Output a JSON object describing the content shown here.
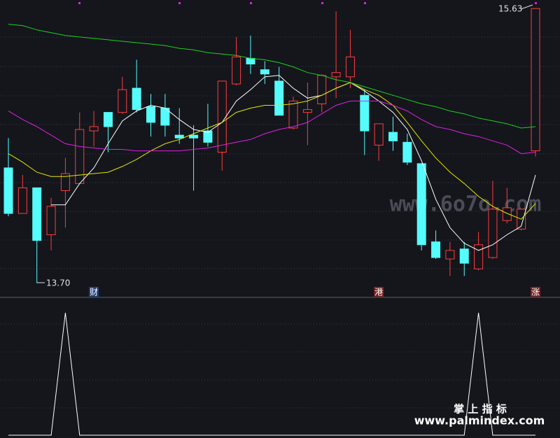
{
  "chart_data": {
    "type": "candlestick",
    "open": [
      14.51,
      14.19,
      14.37,
      14.04,
      14.35,
      14.4,
      14.77,
      14.9,
      14.9,
      15.07,
      14.94,
      14.93,
      14.74,
      14.74,
      14.77,
      14.62,
      15.1,
      15.28,
      15.2,
      15.12,
      14.79,
      14.9,
      14.96,
      15.15,
      15.15,
      15.02,
      14.67,
      14.76,
      14.69,
      14.54,
      13.99,
      13.87,
      13.94,
      13.8,
      13.88,
      14.14,
      14.08,
      14.63
    ],
    "high": [
      14.72,
      14.46,
      14.37,
      14.3,
      14.58,
      14.9,
      14.91,
      14.9,
      15.15,
      15.27,
      15.03,
      15.03,
      14.93,
      14.81,
      14.96,
      15.12,
      15.43,
      15.44,
      15.26,
      15.22,
      15.01,
      15.11,
      15.17,
      15.61,
      15.48,
      15.06,
      14.82,
      14.87,
      14.75,
      14.54,
      14.07,
      13.99,
      13.99,
      14.06,
      14.42,
      14.37,
      14.22,
      15.63
    ],
    "low": [
      14.17,
      14.19,
      13.7,
      13.93,
      14.09,
      14.4,
      14.66,
      14.62,
      14.89,
      14.9,
      14.73,
      14.73,
      14.68,
      14.35,
      14.66,
      14.49,
      15.09,
      15.17,
      15.1,
      14.88,
      14.78,
      14.67,
      14.9,
      15.0,
      15.07,
      14.6,
      14.56,
      14.63,
      14.53,
      13.93,
      13.87,
      13.75,
      13.75,
      13.79,
      13.87,
      14.12,
      14.07,
      14.59
    ],
    "close": [
      14.19,
      14.37,
      14.0,
      14.24,
      14.47,
      14.78,
      14.8,
      14.8,
      15.06,
      14.92,
      14.83,
      14.81,
      14.72,
      14.72,
      14.69,
      15.12,
      15.29,
      15.24,
      15.17,
      14.88,
      14.98,
      14.92,
      15.16,
      15.18,
      15.29,
      14.77,
      14.82,
      14.7,
      14.55,
      13.97,
      13.88,
      13.93,
      13.84,
      13.97,
      14.22,
      14.23,
      14.22,
      15.63
    ],
    "up_color": "#ff3c3c",
    "down_color": "#54fcfc",
    "ylim": [
      13.6,
      15.69
    ],
    "series": [
      {
        "color": "#ffffff",
        "values": [
          null,
          null,
          null,
          14.25,
          14.25,
          14.4,
          14.51,
          14.68,
          14.84,
          14.91,
          14.95,
          14.93,
          14.85,
          14.78,
          14.76,
          14.83,
          14.98,
          15.06,
          15.15,
          15.16,
          15.07,
          15.0,
          15.02,
          15.07,
          15.11,
          15.05,
          14.98,
          14.9,
          14.78,
          14.56,
          14.29,
          14.09,
          13.98,
          13.93,
          13.97,
          14.04,
          14.1,
          14.46
        ]
      },
      {
        "color": "#e6e600",
        "values": [
          14.61,
          14.55,
          14.48,
          14.45,
          14.45,
          14.46,
          14.47,
          14.48,
          14.52,
          14.57,
          14.63,
          14.68,
          14.71,
          14.75,
          14.79,
          14.83,
          14.9,
          14.93,
          14.95,
          14.95,
          14.96,
          14.98,
          15.02,
          15.07,
          15.11,
          15.06,
          15.02,
          14.95,
          14.83,
          14.7,
          14.58,
          14.48,
          14.4,
          14.31,
          14.24,
          14.19,
          14.15,
          14.26
        ]
      },
      {
        "color": "#e020e0",
        "values": [
          14.91,
          14.85,
          14.8,
          14.74,
          14.68,
          14.66,
          14.65,
          14.64,
          14.64,
          14.63,
          14.63,
          14.63,
          14.63,
          14.64,
          14.65,
          14.67,
          14.69,
          14.71,
          14.75,
          14.78,
          14.8,
          14.83,
          14.89,
          14.95,
          14.98,
          14.98,
          14.98,
          14.95,
          14.91,
          14.85,
          14.8,
          14.78,
          14.75,
          14.73,
          14.7,
          14.67,
          14.61,
          14.62
        ]
      },
      {
        "color": "#20d020",
        "values": [
          15.52,
          15.51,
          15.48,
          15.46,
          15.44,
          15.43,
          15.42,
          15.41,
          15.4,
          15.39,
          15.38,
          15.37,
          15.35,
          15.34,
          15.32,
          15.31,
          15.3,
          15.28,
          15.27,
          15.25,
          15.22,
          15.18,
          15.16,
          15.13,
          15.11,
          15.08,
          15.05,
          15.02,
          14.99,
          14.96,
          14.94,
          14.91,
          14.89,
          14.86,
          14.84,
          14.82,
          14.79,
          14.8
        ]
      }
    ],
    "markers": [
      null,
      null,
      null,
      null,
      null,
      null,
      "财",
      null,
      null,
      null,
      null,
      null,
      null,
      null,
      null,
      null,
      null,
      null,
      null,
      null,
      null,
      null,
      null,
      null,
      null,
      null,
      "港",
      null,
      null,
      null,
      null,
      null,
      null,
      null,
      null,
      null,
      null,
      "涨"
    ],
    "high_label": "15.63",
    "low_label": "13.70",
    "indicator": {
      "color": "#ffffff",
      "ylim": [
        0,
        1
      ],
      "values": [
        0,
        0,
        0,
        0,
        1,
        0,
        0,
        0,
        0,
        0,
        0,
        0,
        0,
        0,
        0,
        0,
        0,
        0,
        0,
        0,
        0,
        0,
        0,
        0,
        0,
        0,
        0,
        0,
        0,
        0,
        0,
        0,
        0,
        1,
        0,
        0,
        0,
        0
      ]
    }
  },
  "watermarks": {
    "site": "www.6o7o.com",
    "brand": "掌 上 指 标",
    "url": "www.palmindex.com"
  }
}
